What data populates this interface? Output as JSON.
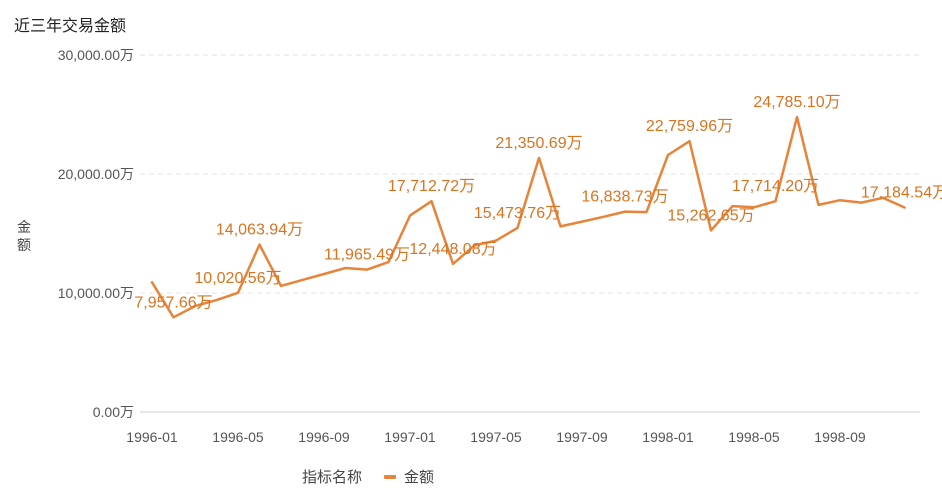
{
  "title": "近三年交易金额",
  "chart_data": {
    "type": "line",
    "title": "近三年交易金额",
    "xlabel": "",
    "ylabel": "金额",
    "y_unit": "万",
    "ylim": [
      0,
      30000
    ],
    "y_ticks": [
      "0.00万",
      "10,000.00万",
      "20,000.00万",
      "30,000.00万"
    ],
    "grid": true,
    "color": "#E8833A",
    "x_tick_labels": [
      "1996-01",
      "1996-05",
      "1996-09",
      "1997-01",
      "1997-05",
      "1997-09",
      "1998-01",
      "1998-05",
      "1998-09"
    ],
    "x": [
      "1996-01",
      "1996-02",
      "1996-03",
      "1996-04",
      "1996-05",
      "1996-06",
      "1996-07",
      "1996-08",
      "1996-09",
      "1996-10",
      "1996-11",
      "1996-12",
      "1997-01",
      "1997-02",
      "1997-03",
      "1997-04",
      "1997-05",
      "1997-06",
      "1997-07",
      "1997-08",
      "1997-09",
      "1997-10",
      "1997-11",
      "1997-12",
      "1998-01",
      "1998-02",
      "1998-03",
      "1998-04",
      "1998-05",
      "1998-06",
      "1998-07",
      "1998-08",
      "1998-09",
      "1998-10",
      "1998-11",
      "1998-12"
    ],
    "series": [
      {
        "name": "金额",
        "values": [
          10900,
          7957.66,
          8900,
          9400,
          10020.56,
          14063.94,
          10600,
          11100,
          11600,
          12100,
          11965.49,
          12600,
          16500,
          17712.72,
          12448.08,
          14000,
          14400,
          15473.76,
          21350.69,
          15600,
          16000,
          16400,
          16838.73,
          16800,
          21600,
          22759.96,
          15262.65,
          17300,
          17200,
          17714.2,
          24785.1,
          17400,
          17800,
          17600,
          18000,
          17184.54
        ]
      }
    ],
    "data_labels": [
      {
        "index": 1,
        "text": "7,957.66万"
      },
      {
        "index": 4,
        "text": "10,020.56万"
      },
      {
        "index": 5,
        "text": "14,063.94万"
      },
      {
        "index": 10,
        "text": "11,965.49万"
      },
      {
        "index": 13,
        "text": "17,712.72万"
      },
      {
        "index": 14,
        "text": "12,448.08万"
      },
      {
        "index": 17,
        "text": "15,473.76万"
      },
      {
        "index": 18,
        "text": "21,350.69万"
      },
      {
        "index": 22,
        "text": "16,838.73万"
      },
      {
        "index": 25,
        "text": "22,759.96万"
      },
      {
        "index": 26,
        "text": "15,262.65万"
      },
      {
        "index": 29,
        "text": "17,714.20万"
      },
      {
        "index": 30,
        "text": "24,785.10万"
      },
      {
        "index": 35,
        "text": "17,184.54万"
      }
    ],
    "legend": {
      "title": "指标名称",
      "label": "金额",
      "position": "bottom"
    }
  }
}
